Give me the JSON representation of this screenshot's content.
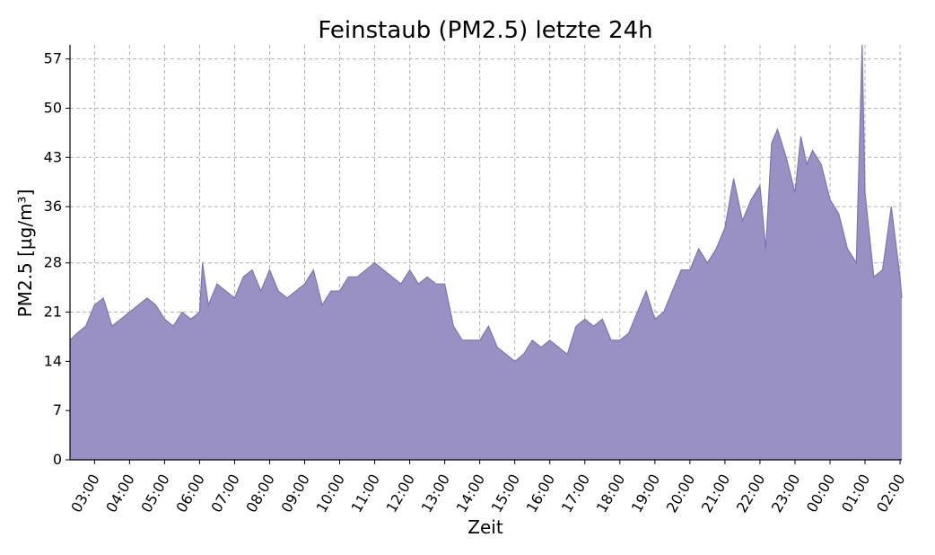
{
  "chart_data": {
    "type": "area",
    "title": "Feinstaub (PM2.5) letzte 24h",
    "xlabel": "Zeit",
    "ylabel": "PM2.5 [µg/m³]",
    "color": "#9990c4",
    "line_color": "#7f74b4",
    "grid": true,
    "y_ticks": [
      0,
      7,
      14,
      21,
      28,
      36,
      43,
      50,
      57
    ],
    "ylim": [
      0,
      59
    ],
    "x_start": "02:18",
    "x_end": "02:03",
    "x_ticks": [
      "03:00",
      "04:00",
      "05:00",
      "06:00",
      "07:00",
      "08:00",
      "09:00",
      "10:00",
      "11:00",
      "12:00",
      "13:00",
      "14:00",
      "15:00",
      "16:00",
      "17:00",
      "18:00",
      "19:00",
      "20:00",
      "21:00",
      "22:00",
      "23:00",
      "00:00",
      "01:00",
      "02:00"
    ],
    "series": [
      {
        "x": [
          "02:18",
          "02:30",
          "02:45",
          "03:00",
          "03:15",
          "03:30",
          "03:45",
          "04:00",
          "04:15",
          "04:30",
          "04:45",
          "05:00",
          "05:15",
          "05:30",
          "05:45",
          "06:00",
          "06:05",
          "06:15",
          "06:30",
          "06:45",
          "07:00",
          "07:15",
          "07:30",
          "07:45",
          "08:00",
          "08:15",
          "08:30",
          "08:45",
          "09:00",
          "09:15",
          "09:30",
          "09:45",
          "10:00",
          "10:15",
          "10:30",
          "10:45",
          "11:00",
          "11:15",
          "11:30",
          "11:45",
          "12:00",
          "12:15",
          "12:30",
          "12:45",
          "13:00",
          "13:15",
          "13:30",
          "13:45",
          "14:00",
          "14:15",
          "14:30",
          "14:45",
          "15:00",
          "15:15",
          "15:30",
          "15:45",
          "16:00",
          "16:15",
          "16:30",
          "16:45",
          "17:00",
          "17:15",
          "17:30",
          "17:45",
          "18:00",
          "18:15",
          "18:30",
          "18:45",
          "19:00",
          "19:15",
          "19:30",
          "19:45",
          "20:00",
          "20:15",
          "20:30",
          "20:45",
          "21:00",
          "21:15",
          "21:30",
          "21:45",
          "22:00",
          "22:10",
          "22:20",
          "22:30",
          "22:45",
          "23:00",
          "23:10",
          "23:20",
          "23:30",
          "23:45",
          "00:00",
          "00:15",
          "00:30",
          "00:45",
          "00:55",
          "01:00",
          "01:15",
          "01:30",
          "01:45",
          "02:00",
          "02:03"
        ],
        "values": [
          17,
          18,
          19,
          22,
          23,
          19,
          20,
          21,
          22,
          23,
          22,
          20,
          19,
          21,
          20,
          21,
          28,
          22,
          25,
          24,
          23,
          26,
          27,
          24,
          27,
          24,
          23,
          24,
          25,
          27,
          22,
          24,
          24,
          26,
          26,
          27,
          28,
          27,
          26,
          25,
          27,
          25,
          26,
          25,
          25,
          19,
          17,
          17,
          17,
          19,
          16,
          15,
          14,
          15,
          17,
          16,
          17,
          16,
          15,
          19,
          20,
          19,
          20,
          17,
          17,
          18,
          21,
          24,
          20,
          21,
          24,
          27,
          27,
          30,
          28,
          30,
          33,
          40,
          34,
          37,
          39,
          30,
          45,
          47,
          43,
          38,
          46,
          42,
          44,
          42,
          37,
          35,
          30,
          28,
          59,
          38,
          26,
          27,
          36,
          26,
          23
        ]
      }
    ]
  }
}
